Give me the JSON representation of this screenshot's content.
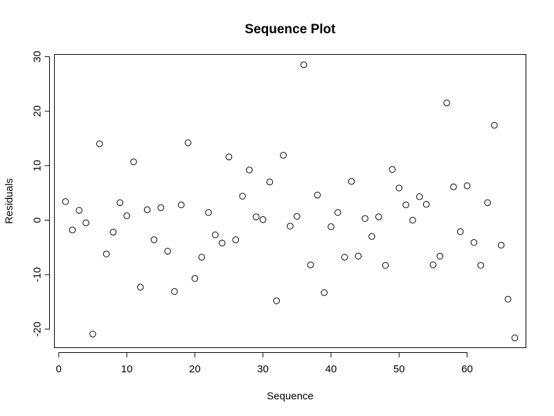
{
  "chart_data": {
    "type": "scatter",
    "title": "Sequence Plot",
    "xlabel": "Sequence",
    "ylabel": "Residuals",
    "xlim": [
      -0.64,
      68.64
    ],
    "ylim": [
      -23.4,
      30.4
    ],
    "xticks": [
      0,
      10,
      20,
      30,
      40,
      50,
      60
    ],
    "yticks": [
      -20,
      -10,
      0,
      10,
      20,
      30
    ],
    "grid": false,
    "marker": "open-circle",
    "series": [
      {
        "x": [
          1,
          2,
          3,
          4,
          5,
          6,
          7,
          8,
          9,
          10,
          11,
          12,
          13,
          14,
          15,
          16,
          17,
          18,
          19,
          20,
          21,
          22,
          23,
          24,
          25,
          26,
          27,
          28,
          29,
          30,
          31,
          32,
          33,
          34,
          35,
          36,
          37,
          38,
          39,
          40,
          41,
          42,
          43,
          44,
          45,
          46,
          47,
          48,
          49,
          50,
          51,
          52,
          53,
          54,
          55,
          56,
          57,
          58,
          59,
          60,
          61,
          62,
          63,
          64,
          65,
          66,
          67
        ],
        "y": [
          3.4,
          -1.8,
          1.8,
          -0.5,
          -20.9,
          14.0,
          -6.2,
          -2.2,
          3.2,
          0.8,
          10.7,
          -12.3,
          1.9,
          -3.6,
          2.3,
          -5.7,
          -13.1,
          2.8,
          14.2,
          -10.7,
          -6.8,
          1.4,
          -2.7,
          -4.2,
          11.6,
          -3.6,
          4.4,
          9.2,
          0.6,
          0.1,
          7.0,
          -14.8,
          11.9,
          -1.1,
          0.7,
          28.5,
          -8.2,
          4.6,
          -13.3,
          -1.2,
          1.4,
          -6.8,
          7.1,
          -6.6,
          0.3,
          -3.0,
          0.6,
          -8.3,
          9.3,
          5.9,
          2.8,
          0.0,
          4.3,
          2.9,
          -8.2,
          -6.6,
          21.5,
          6.1,
          -2.1,
          6.3,
          -4.1,
          -8.3,
          3.2,
          17.4,
          -4.6,
          -14.5,
          -21.6
        ]
      }
    ]
  }
}
